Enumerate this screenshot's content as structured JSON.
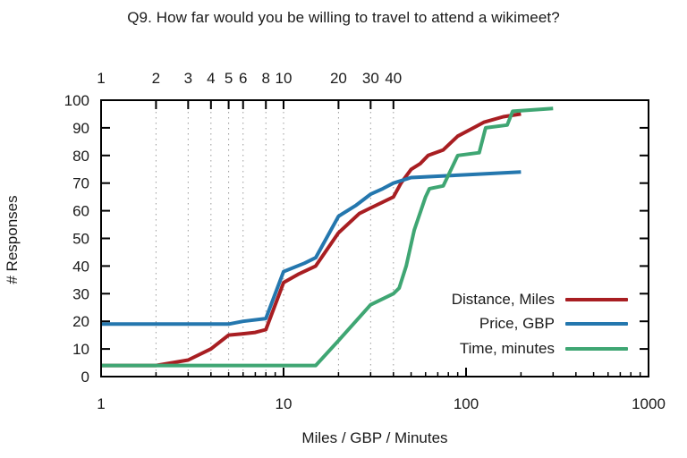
{
  "title": "Q9. How far would you be willing to travel to attend a wikimeet?",
  "colors": {
    "background": "#ffffff",
    "axis": "#000000",
    "grid": "#9a9a9a",
    "text": "#1a1a1a"
  },
  "chart_data": {
    "type": "line",
    "title": "Q9. How far would you be willing to travel to attend a wikimeet?",
    "xlabel": "Miles / GBP / Minutes",
    "ylabel": "# Responses",
    "x_scale": "log10",
    "xlim": [
      1,
      1000
    ],
    "ylim": [
      0,
      100
    ],
    "x_ticks": [
      1,
      10,
      100,
      1000
    ],
    "x2_ticks": [
      1,
      2,
      3,
      4,
      5,
      6,
      8,
      10,
      20,
      30,
      40
    ],
    "y_ticks": [
      0,
      10,
      20,
      30,
      40,
      50,
      60,
      70,
      80,
      90,
      100
    ],
    "grid": "vertical-dotted-at-x2-ticks",
    "legend_position": "inside-lower-right",
    "series": [
      {
        "name": "Distance, Miles",
        "color": "#a81e22",
        "points": [
          [
            1,
            4
          ],
          [
            2,
            4
          ],
          [
            3,
            6
          ],
          [
            4,
            10
          ],
          [
            5,
            15
          ],
          [
            6,
            15.5
          ],
          [
            7,
            16
          ],
          [
            8,
            17
          ],
          [
            10,
            34
          ],
          [
            12,
            37
          ],
          [
            15,
            40
          ],
          [
            20,
            52
          ],
          [
            26,
            59
          ],
          [
            30,
            61
          ],
          [
            40,
            65
          ],
          [
            44,
            70
          ],
          [
            50,
            75
          ],
          [
            56,
            77
          ],
          [
            62,
            80
          ],
          [
            75,
            82
          ],
          [
            90,
            87
          ],
          [
            110,
            90
          ],
          [
            125,
            92
          ],
          [
            160,
            94
          ],
          [
            200,
            95
          ]
        ]
      },
      {
        "name": "Price, GBP",
        "color": "#2477ae",
        "points": [
          [
            1,
            19
          ],
          [
            5,
            19
          ],
          [
            6,
            20
          ],
          [
            8,
            21
          ],
          [
            10,
            38
          ],
          [
            13,
            41
          ],
          [
            15,
            43
          ],
          [
            20,
            58
          ],
          [
            25,
            62
          ],
          [
            30,
            66
          ],
          [
            35,
            68
          ],
          [
            40,
            70
          ],
          [
            50,
            72
          ],
          [
            70,
            72.5
          ],
          [
            100,
            73
          ],
          [
            200,
            74
          ]
        ]
      },
      {
        "name": "Time, minutes",
        "color": "#3fa673",
        "points": [
          [
            1,
            4
          ],
          [
            15,
            4
          ],
          [
            20,
            13
          ],
          [
            30,
            26
          ],
          [
            40,
            30
          ],
          [
            43,
            32
          ],
          [
            47,
            40
          ],
          [
            52,
            53
          ],
          [
            60,
            65
          ],
          [
            63,
            68
          ],
          [
            75,
            69
          ],
          [
            90,
            80
          ],
          [
            118,
            81
          ],
          [
            128,
            90
          ],
          [
            168,
            91
          ],
          [
            180,
            96
          ],
          [
            300,
            97
          ]
        ]
      }
    ]
  }
}
